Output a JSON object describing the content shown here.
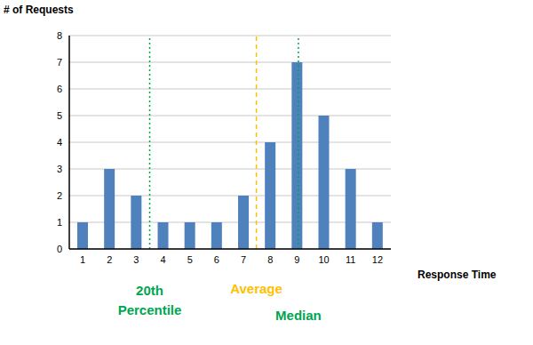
{
  "chart_data": {
    "type": "bar",
    "x_label": "Response Time",
    "y_label": "# of Requests",
    "x": [
      1,
      2,
      3,
      4,
      5,
      6,
      7,
      8,
      9,
      10,
      11,
      12
    ],
    "values": [
      1,
      3,
      2,
      1,
      1,
      1,
      2,
      4,
      7,
      5,
      3,
      1
    ],
    "color": "#4f81bd",
    "xlim": [
      0.5,
      12.5
    ],
    "xticks": [
      1,
      2,
      3,
      4,
      5,
      6,
      7,
      8,
      9,
      10,
      11,
      12
    ],
    "ylim": [
      0,
      8
    ],
    "yticks": [
      0,
      1,
      2,
      3,
      4,
      5,
      6,
      7,
      8
    ],
    "grid": true,
    "annotations": [
      {
        "text": "20th Percentile",
        "x": 3.5,
        "color": "#00a550",
        "line_style": "dotted"
      },
      {
        "text": "Average",
        "x": 7.48,
        "color": "#ffc000",
        "line_style": "dashed"
      },
      {
        "text": "Median",
        "x": 9.05,
        "color": "#00a550",
        "line_style": "dotted"
      }
    ]
  }
}
